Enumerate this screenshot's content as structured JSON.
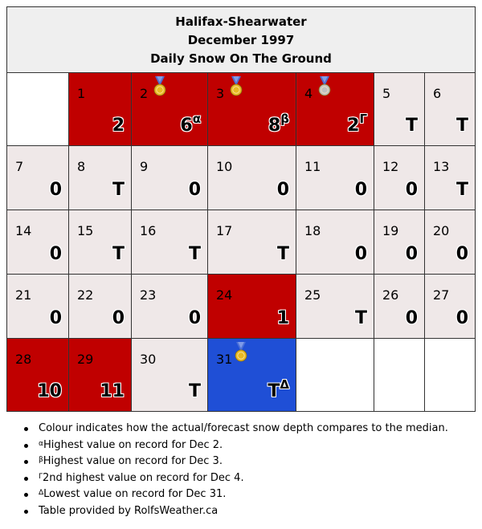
{
  "header": {
    "station": "Halifax-Shearwater",
    "month": "December 1997",
    "subtitle": "Daily Snow On The Ground"
  },
  "colors": {
    "above_median": "#c00000",
    "near_median": "#efe8e8",
    "below_median": "#1f4fd6",
    "empty": "#ffffff",
    "medal_gold": "#e8b923",
    "medal_silver": "#c0c0c0",
    "ribbon": "#4a6fd8"
  },
  "days": [
    {
      "day": "1",
      "value": "2",
      "sup": "",
      "medal": "",
      "status": "red"
    },
    {
      "day": "2",
      "value": "6",
      "sup": "α",
      "medal": "gold",
      "status": "red"
    },
    {
      "day": "3",
      "value": "8",
      "sup": "β",
      "medal": "gold",
      "status": "red"
    },
    {
      "day": "4",
      "value": "2",
      "sup": "Γ",
      "medal": "silver",
      "status": "red"
    },
    {
      "day": "5",
      "value": "T",
      "sup": "",
      "medal": "",
      "status": "normal"
    },
    {
      "day": "6",
      "value": "T",
      "sup": "",
      "medal": "",
      "status": "normal"
    },
    {
      "day": "7",
      "value": "0",
      "sup": "",
      "medal": "",
      "status": "normal"
    },
    {
      "day": "8",
      "value": "T",
      "sup": "",
      "medal": "",
      "status": "normal"
    },
    {
      "day": "9",
      "value": "0",
      "sup": "",
      "medal": "",
      "status": "normal"
    },
    {
      "day": "10",
      "value": "0",
      "sup": "",
      "medal": "",
      "status": "normal"
    },
    {
      "day": "11",
      "value": "0",
      "sup": "",
      "medal": "",
      "status": "normal"
    },
    {
      "day": "12",
      "value": "0",
      "sup": "",
      "medal": "",
      "status": "normal"
    },
    {
      "day": "13",
      "value": "T",
      "sup": "",
      "medal": "",
      "status": "normal"
    },
    {
      "day": "14",
      "value": "0",
      "sup": "",
      "medal": "",
      "status": "normal"
    },
    {
      "day": "15",
      "value": "T",
      "sup": "",
      "medal": "",
      "status": "normal"
    },
    {
      "day": "16",
      "value": "T",
      "sup": "",
      "medal": "",
      "status": "normal"
    },
    {
      "day": "17",
      "value": "T",
      "sup": "",
      "medal": "",
      "status": "normal"
    },
    {
      "day": "18",
      "value": "0",
      "sup": "",
      "medal": "",
      "status": "normal"
    },
    {
      "day": "19",
      "value": "0",
      "sup": "",
      "medal": "",
      "status": "normal"
    },
    {
      "day": "20",
      "value": "0",
      "sup": "",
      "medal": "",
      "status": "normal"
    },
    {
      "day": "21",
      "value": "0",
      "sup": "",
      "medal": "",
      "status": "normal"
    },
    {
      "day": "22",
      "value": "0",
      "sup": "",
      "medal": "",
      "status": "normal"
    },
    {
      "day": "23",
      "value": "0",
      "sup": "",
      "medal": "",
      "status": "normal"
    },
    {
      "day": "24",
      "value": "1",
      "sup": "",
      "medal": "",
      "status": "red"
    },
    {
      "day": "25",
      "value": "T",
      "sup": "",
      "medal": "",
      "status": "normal"
    },
    {
      "day": "26",
      "value": "0",
      "sup": "",
      "medal": "",
      "status": "normal"
    },
    {
      "day": "27",
      "value": "0",
      "sup": "",
      "medal": "",
      "status": "normal"
    },
    {
      "day": "28",
      "value": "10",
      "sup": "",
      "medal": "",
      "status": "red"
    },
    {
      "day": "29",
      "value": "11",
      "sup": "",
      "medal": "",
      "status": "red"
    },
    {
      "day": "30",
      "value": "T",
      "sup": "",
      "medal": "",
      "status": "normal"
    },
    {
      "day": "31",
      "value": "T",
      "sup": "Δ",
      "medal": "gold",
      "status": "blue"
    }
  ],
  "notes": [
    {
      "sup": "",
      "text": "Colour indicates how the actual/forecast snow depth compares to the median."
    },
    {
      "sup": "α",
      "text": "Highest value on record for Dec 2."
    },
    {
      "sup": "β",
      "text": "Highest value on record for Dec 3."
    },
    {
      "sup": "Γ",
      "text": "2nd highest value on record for Dec 4."
    },
    {
      "sup": "Δ",
      "text": "Lowest value on record for Dec 31."
    },
    {
      "sup": "",
      "text": "Table provided by RolfsWeather.ca"
    }
  ]
}
